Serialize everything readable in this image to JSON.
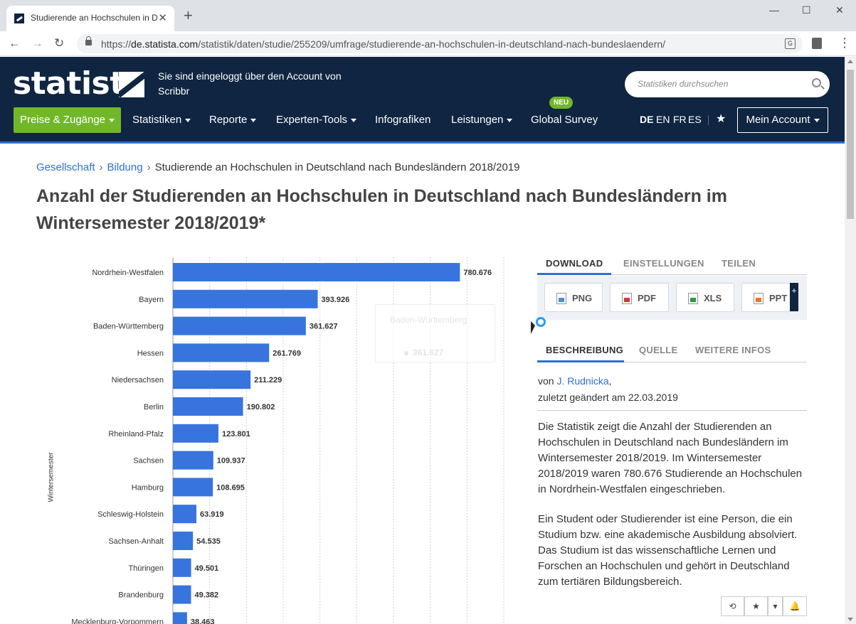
{
  "browser": {
    "tab_title": "Studierende an Hochschulen in Deutschland",
    "tab_close": "✕",
    "new_tab": "+",
    "url_domain": "de.statista.com",
    "url_path": "/statistik/daten/studie/255209/umfrage/studierende-an-hochschulen-in-deutschland-nach-bundeslaendern/",
    "url_prefix": "https://",
    "win_min": "—",
    "win_max": "☐",
    "win_close": "✕",
    "back": "←",
    "forward": "→",
    "reload": "↻",
    "menu": "⋮"
  },
  "header": {
    "logo_text": "statista",
    "login_line1": "Sie sind eingeloggt über den Account von",
    "login_line2": "Scribbr",
    "search_placeholder": "Statistiken durchsuchen",
    "cta": "Preise & Zugänge",
    "nav": [
      "Statistiken",
      "Reporte",
      "Experten-Tools",
      "Infografiken",
      "Leistungen",
      "Global Survey"
    ],
    "neu_badge": "NEU",
    "languages": [
      "DE",
      "EN",
      "FR",
      "ES"
    ],
    "star": "★",
    "account": "Mein Account"
  },
  "breadcrumb": {
    "item1": "Gesellschaft",
    "item2": "Bildung",
    "current": "Studierende an Hochschulen in Deutschland nach Bundesländern 2018/2019",
    "sep": "›"
  },
  "page_title": "Anzahl der Studierenden an Hochschulen in Deutschland nach Bundesländern im Wintersemester 2018/2019*",
  "chart_data": {
    "type": "bar",
    "orientation": "horizontal",
    "categories": [
      "Nordrhein-Westfalen",
      "Bayern",
      "Baden-Württemberg",
      "Hessen",
      "Niedersachsen",
      "Berlin",
      "Rheinland-Pfalz",
      "Sachsen",
      "Hamburg",
      "Schleswig-Holstein",
      "Sachsen-Anhalt",
      "Thüringen",
      "Brandenburg",
      "Mecklenburg-Vorpommern"
    ],
    "values": [
      780676,
      393926,
      361627,
      261769,
      211229,
      190802,
      123801,
      109937,
      108695,
      63919,
      54535,
      49501,
      49382,
      38463
    ],
    "value_labels": [
      "780.676",
      "393.926",
      "361.627",
      "261.769",
      "211.229",
      "190.802",
      "123.801",
      "109.937",
      "108.695",
      "63.919",
      "54.535",
      "49.501",
      "49.382",
      "38.463"
    ],
    "ylabel": "Wintersemester",
    "xlim": [
      0,
      900000
    ],
    "bar_color": "#3874de",
    "grid": true,
    "tooltip": {
      "label": "Baden-Württemberg",
      "value": "361.627"
    }
  },
  "panel": {
    "tabs1": [
      "DOWNLOAD",
      "EINSTELLUNGEN",
      "TEILEN"
    ],
    "downloads": [
      "PNG",
      "PDF",
      "XLS",
      "PPT"
    ],
    "more": "+",
    "tabs2": [
      "BESCHREIBUNG",
      "QUELLE",
      "WEITERE INFOS"
    ],
    "author_prefix": "von",
    "author": "J. Rudnicka",
    "author_suffix": ",",
    "changed": "zuletzt geändert am 22.03.2019",
    "desc1": "Die Statistik zeigt die Anzahl der Studierenden an Hochschulen in Deutschland nach Bundesländern im Wintersemester 2018/2019. Im Wintersemester 2018/2019 waren 780.676 Studierende an Hochschulen in Nordrhein-Westfalen eingeschrieben.",
    "desc2": "Ein Student oder Studierender ist eine Person, die ein Studium bzw. eine akademische Ausbildung absolviert. Das Studium ist das wissenschaftliche Lernen und Forschen an Hochschulen und gehört in Deutschland zum tertiären Bildungsbereich.",
    "actions": [
      "⟲",
      "★",
      "▾",
      "🔔"
    ]
  }
}
